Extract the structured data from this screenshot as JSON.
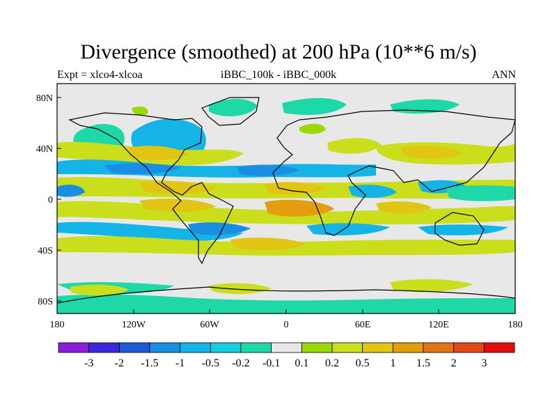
{
  "title": "Divergence (smoothed) at 200 hPa (10**6 m/s)",
  "subtitle_left": "Expt = xlco4-xlcoa",
  "subtitle_center": "iBBC_100k - iBBC_000k",
  "subtitle_right": "ANN",
  "lat_ticks": [
    "80N",
    "40N",
    "0",
    "40S",
    "80S"
  ],
  "lon_ticks": [
    "180",
    "120W",
    "60W",
    "0",
    "60E",
    "120E",
    "180"
  ],
  "colorbar": {
    "labels": [
      "-3",
      "-2",
      "-1.5",
      "-1",
      "-0.5",
      "-0.2",
      "-0.1",
      "0.1",
      "0.2",
      "0.5",
      "1",
      "1.5",
      "2",
      "3"
    ],
    "colors": [
      "#8a1ed8",
      "#3c28d8",
      "#1e5ad6",
      "#1a8ee2",
      "#14b4e6",
      "#18cce0",
      "#1ed8a8",
      "#e8e8e8",
      "#9ad808",
      "#cade1c",
      "#e2c412",
      "#e29e0e",
      "#e07414",
      "#e24818",
      "#e00e0e"
    ]
  }
}
